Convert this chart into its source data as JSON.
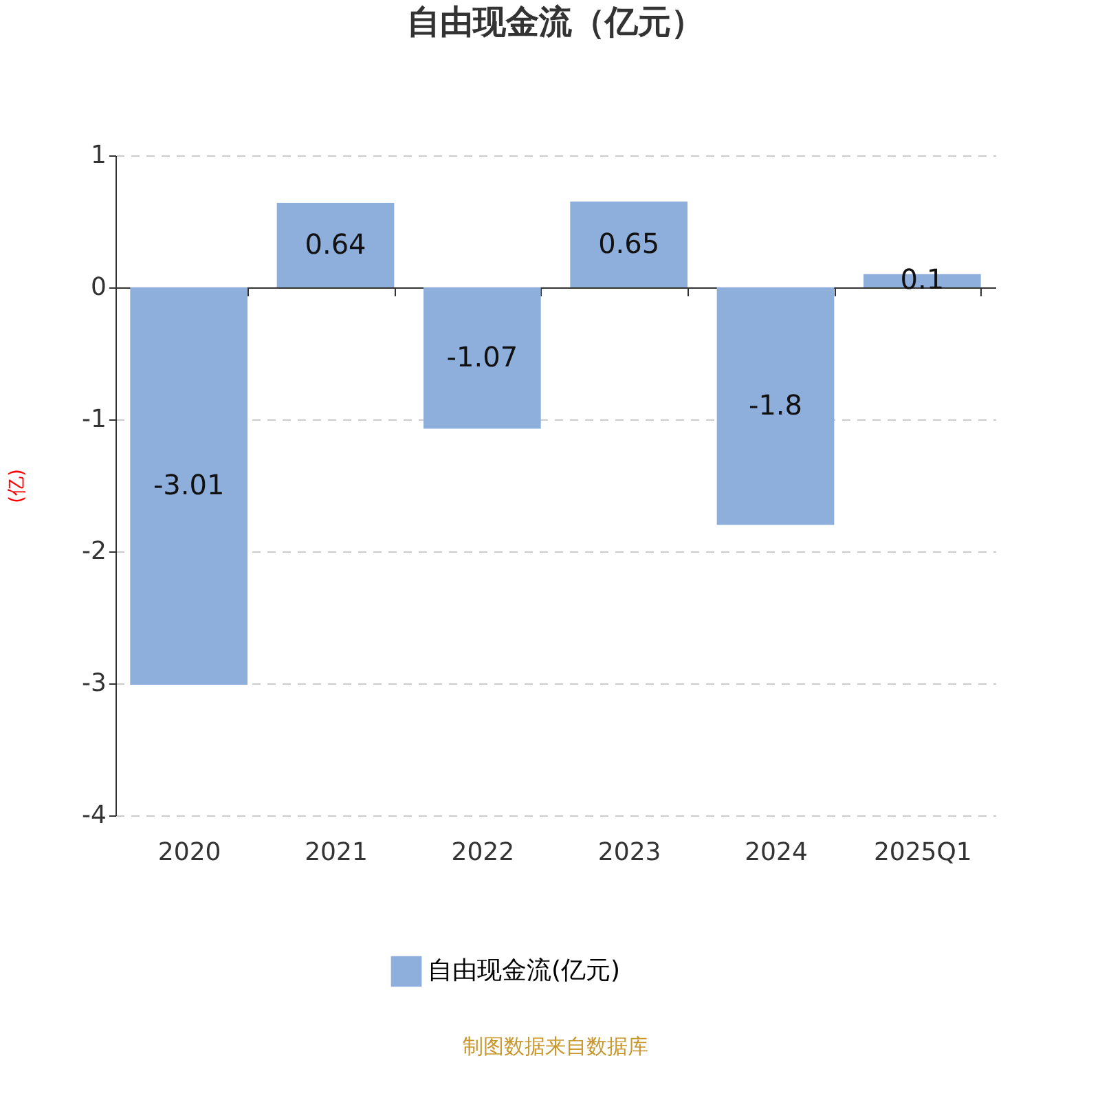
{
  "chart_data": {
    "type": "bar",
    "title": "自由现金流（亿元）",
    "ylabel": "(亿)",
    "categories": [
      "2020",
      "2021",
      "2022",
      "2023",
      "2024",
      "2025Q1"
    ],
    "series": [
      {
        "name": "自由现金流(亿元)",
        "color": "#8eaedb",
        "values": [
          -3.01,
          0.64,
          -1.07,
          0.65,
          -1.8,
          0.1
        ]
      }
    ],
    "ylim": [
      -4,
      1
    ],
    "yticks": [
      {
        "value": -4,
        "label": "-4"
      },
      {
        "value": -3,
        "label": "-3"
      },
      {
        "value": -2,
        "label": "-2"
      },
      {
        "value": -1,
        "label": "-1"
      },
      0,
      1
    ],
    "grid": "y",
    "legend": "bottom",
    "data_labels": true,
    "annotations": [
      "制图数据来自数据库"
    ]
  }
}
